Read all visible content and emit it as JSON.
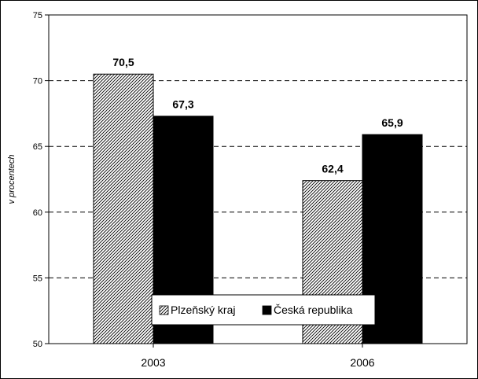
{
  "chart_data": {
    "type": "bar",
    "categories": [
      "2003",
      "2006"
    ],
    "series": [
      {
        "name": "Plzeňský kraj",
        "values": [
          70.5,
          62.4
        ],
        "pattern": "hatched",
        "color": "#000000"
      },
      {
        "name": "Česká republika",
        "values": [
          67.3,
          65.9
        ],
        "pattern": "solid",
        "color": "#000000"
      }
    ],
    "value_labels": [
      [
        "70,5",
        "62,4"
      ],
      [
        "67,3",
        "65,9"
      ]
    ],
    "title": "",
    "xlabel": "",
    "ylabel": "v procentech",
    "ylim": [
      50,
      75
    ],
    "yticks": [
      50,
      55,
      60,
      65,
      70,
      75
    ],
    "grid": "dashed-horizontal",
    "legend_position": "bottom-center"
  }
}
